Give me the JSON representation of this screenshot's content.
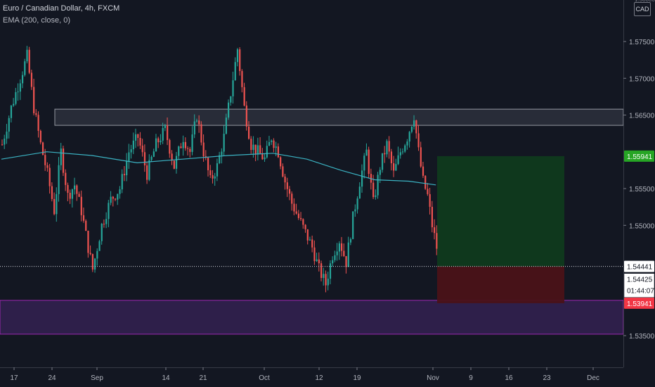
{
  "header": {
    "symbol_line": "Euro / Canadian Dollar, 4h, FXCM",
    "indicator_line": "EMA (200, close, 0)",
    "currency_badge": "CAD"
  },
  "colors": {
    "background": "#131722",
    "candle_up": "#26a69a",
    "candle_down": "#ef5350",
    "ema": "#3bb3c3",
    "zone_gray_fill": "#3a3e4a",
    "zone_purple_fill": "#2e1f4a",
    "zone_purple_border": "#9c27b0",
    "target_fill": "#0f3a1e",
    "stop_fill": "#4a1218",
    "target_tag": "#26a524",
    "stop_tag": "#f23645"
  },
  "chart_data": {
    "type": "candlestick",
    "title": "Euro / Canadian Dollar, 4h, FXCM",
    "ylim": [
      1.532,
      1.58
    ],
    "y_ticks": [
      "1.57500",
      "1.57000",
      "1.56500",
      "1.55500",
      "1.55000",
      "1.53500"
    ],
    "y_tick_values": [
      1.575,
      1.57,
      1.565,
      1.555,
      1.55,
      1.535
    ],
    "x_ticks": [
      "17",
      "24",
      "Sep",
      "14",
      "21",
      "Oct",
      "12",
      "19",
      "Nov",
      "9",
      "16",
      "23",
      "Dec"
    ],
    "price_path": [
      [
        0,
        1.561
      ],
      [
        4,
        1.566
      ],
      [
        8,
        1.57
      ],
      [
        11,
        1.573
      ],
      [
        14,
        1.566
      ],
      [
        17,
        1.561
      ],
      [
        20,
        1.557
      ],
      [
        23,
        1.552
      ],
      [
        26,
        1.56
      ],
      [
        29,
        1.554
      ],
      [
        32,
        1.5555
      ],
      [
        35,
        1.552
      ],
      [
        38,
        1.547
      ],
      [
        40,
        1.544
      ],
      [
        44,
        1.55
      ],
      [
        48,
        1.5535
      ],
      [
        52,
        1.555
      ],
      [
        56,
        1.56
      ],
      [
        60,
        1.562
      ],
      [
        64,
        1.557
      ],
      [
        68,
        1.561
      ],
      [
        72,
        1.563
      ],
      [
        76,
        1.558
      ],
      [
        80,
        1.562
      ],
      [
        83,
        1.56
      ],
      [
        86,
        1.565
      ],
      [
        89,
        1.56
      ],
      [
        92,
        1.556
      ],
      [
        95,
        1.558
      ],
      [
        98,
        1.562
      ],
      [
        101,
        1.568
      ],
      [
        104,
        1.574
      ],
      [
        107,
        1.566
      ],
      [
        110,
        1.561
      ],
      [
        113,
        1.56
      ],
      [
        116,
        1.559
      ],
      [
        119,
        1.562
      ],
      [
        122,
        1.56
      ],
      [
        125,
        1.556
      ],
      [
        128,
        1.553
      ],
      [
        131,
        1.551
      ],
      [
        134,
        1.549
      ],
      [
        137,
        1.547
      ],
      [
        140,
        1.544
      ],
      [
        143,
        1.542
      ],
      [
        146,
        1.546
      ],
      [
        149,
        1.548
      ],
      [
        152,
        1.545
      ],
      [
        155,
        1.551
      ],
      [
        158,
        1.556
      ],
      [
        161,
        1.56
      ],
      [
        164,
        1.553
      ],
      [
        167,
        1.558
      ],
      [
        170,
        1.561
      ],
      [
        173,
        1.557
      ],
      [
        176,
        1.56
      ],
      [
        179,
        1.562
      ],
      [
        182,
        1.565
      ],
      [
        184,
        1.56
      ],
      [
        186,
        1.556
      ],
      [
        188,
        1.554
      ],
      [
        190,
        1.55
      ],
      [
        192,
        1.547
      ]
    ],
    "ema_200": [
      [
        0,
        1.559
      ],
      [
        20,
        1.56
      ],
      [
        40,
        1.5595
      ],
      [
        60,
        1.5585
      ],
      [
        80,
        1.559
      ],
      [
        100,
        1.5595
      ],
      [
        120,
        1.5598
      ],
      [
        135,
        1.559
      ],
      [
        150,
        1.5575
      ],
      [
        165,
        1.5562
      ],
      [
        180,
        1.556
      ],
      [
        192,
        1.5555
      ]
    ],
    "last_price": 1.54441,
    "order_ticket": {
      "price": "1.54425",
      "countdown": "01:44:07"
    },
    "zones": [
      {
        "name": "resistance",
        "from": 1.5636,
        "to": 1.5658
      },
      {
        "name": "support",
        "from": 1.5352,
        "to": 1.5398
      }
    ],
    "position": {
      "entry": 1.54441,
      "target": 1.55941,
      "stop": 1.53941
    },
    "price_tags": {
      "target": "1.55941",
      "last": "1.54441",
      "stop": "1.53941"
    },
    "grid": false,
    "legend": "top-left"
  }
}
